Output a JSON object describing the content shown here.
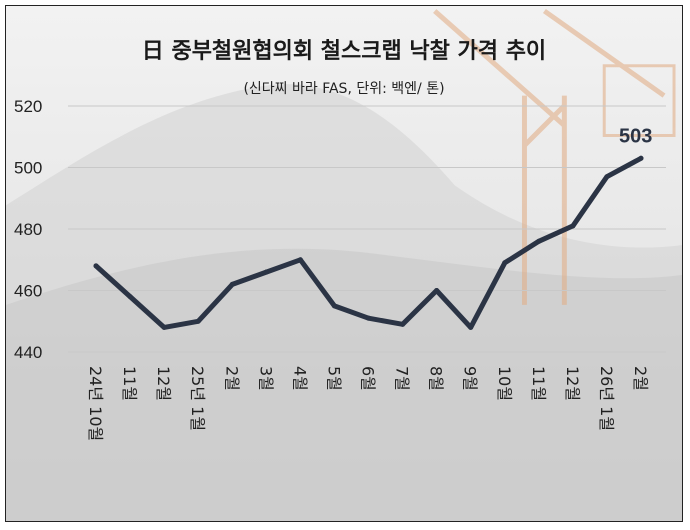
{
  "chart_data": {
    "type": "line",
    "title": "日 중부철원협의회 철스크랩 낙찰 가격 추이",
    "subtitle": "(신다찌 바라 FAS, 단위: 백엔/ 톤)",
    "ylim": [
      440,
      520
    ],
    "yticks": [
      "520",
      "500",
      "480",
      "460",
      "440"
    ],
    "grid": true,
    "line_color": "#2b3445",
    "categories": [
      "24년 10월",
      "11월",
      "12월",
      "25년 1월",
      "2월",
      "3월",
      "4월",
      "5월",
      "6월",
      "7월",
      "8월",
      "9월",
      "10월",
      "11월",
      "12월",
      "26년 1월",
      "2월"
    ],
    "values": [
      468,
      458,
      448,
      450,
      462,
      466,
      470,
      455,
      451,
      449,
      460,
      448,
      469,
      476,
      481,
      497,
      503
    ],
    "annotations": [
      {
        "label": "503"
      }
    ]
  }
}
